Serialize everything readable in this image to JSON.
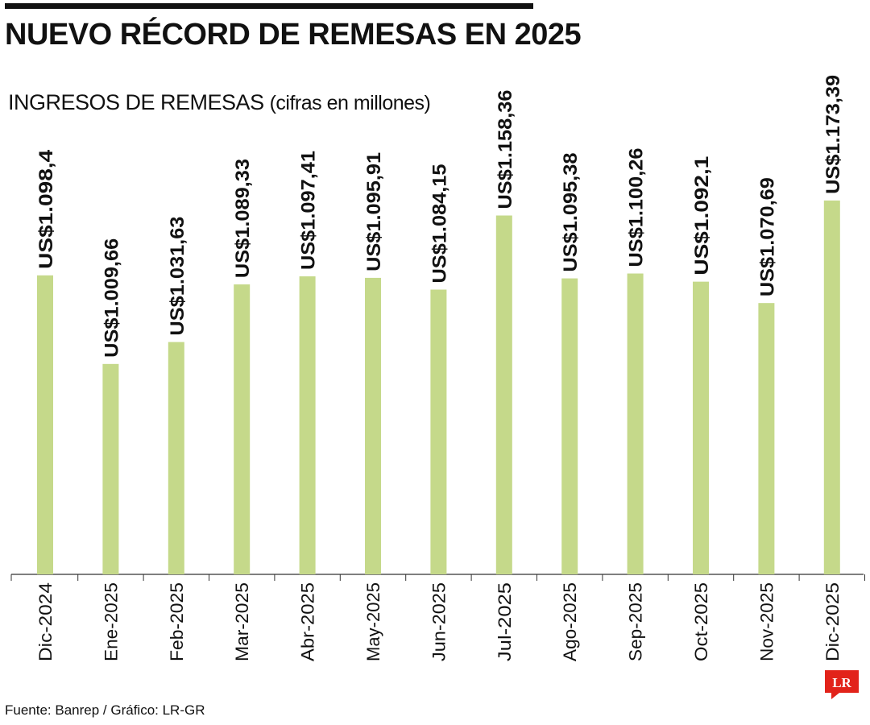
{
  "title": "NUEVO RÉCORD DE REMESAS EN 2025",
  "subtitle": "INGRESOS DE REMESAS",
  "subtitle_unit": "(cifras en millones)",
  "source": "Fuente: Banrep / Gráfico: LR-GR",
  "logo_text": "LR",
  "colors": {
    "bar": "#c5d98a",
    "text": "#111111",
    "logo": "#e2231a"
  },
  "chart_data": {
    "type": "bar",
    "title": "INGRESOS DE REMESAS",
    "xlabel": "",
    "ylabel": "",
    "categories": [
      "Dic-2024",
      "Ene-2025",
      "Feb-2025",
      "Mar-2025",
      "Abr-2025",
      "May-2025",
      "Jun-2025",
      "Jul-2025",
      "Ago-2025",
      "Sep-2025",
      "Oct-2025",
      "Nov-2025",
      "Dic-2025"
    ],
    "values": [
      1098.4,
      1009.66,
      1031.63,
      1089.33,
      1097.41,
      1095.91,
      1084.15,
      1158.36,
      1095.38,
      1100.26,
      1092.1,
      1070.69,
      1173.39
    ],
    "data_labels": [
      "US$1.098,4",
      "US$1.009,66",
      "US$1.031,63",
      "US$1.089,33",
      "US$1.097,41",
      "US$1.095,91",
      "US$1.084,15",
      "US$1.158,36",
      "US$1.095,38",
      "US$1.100,26",
      "US$1.092,1",
      "US$1.070,69",
      "US$1.173,39"
    ],
    "grid": false,
    "legend": "none"
  }
}
